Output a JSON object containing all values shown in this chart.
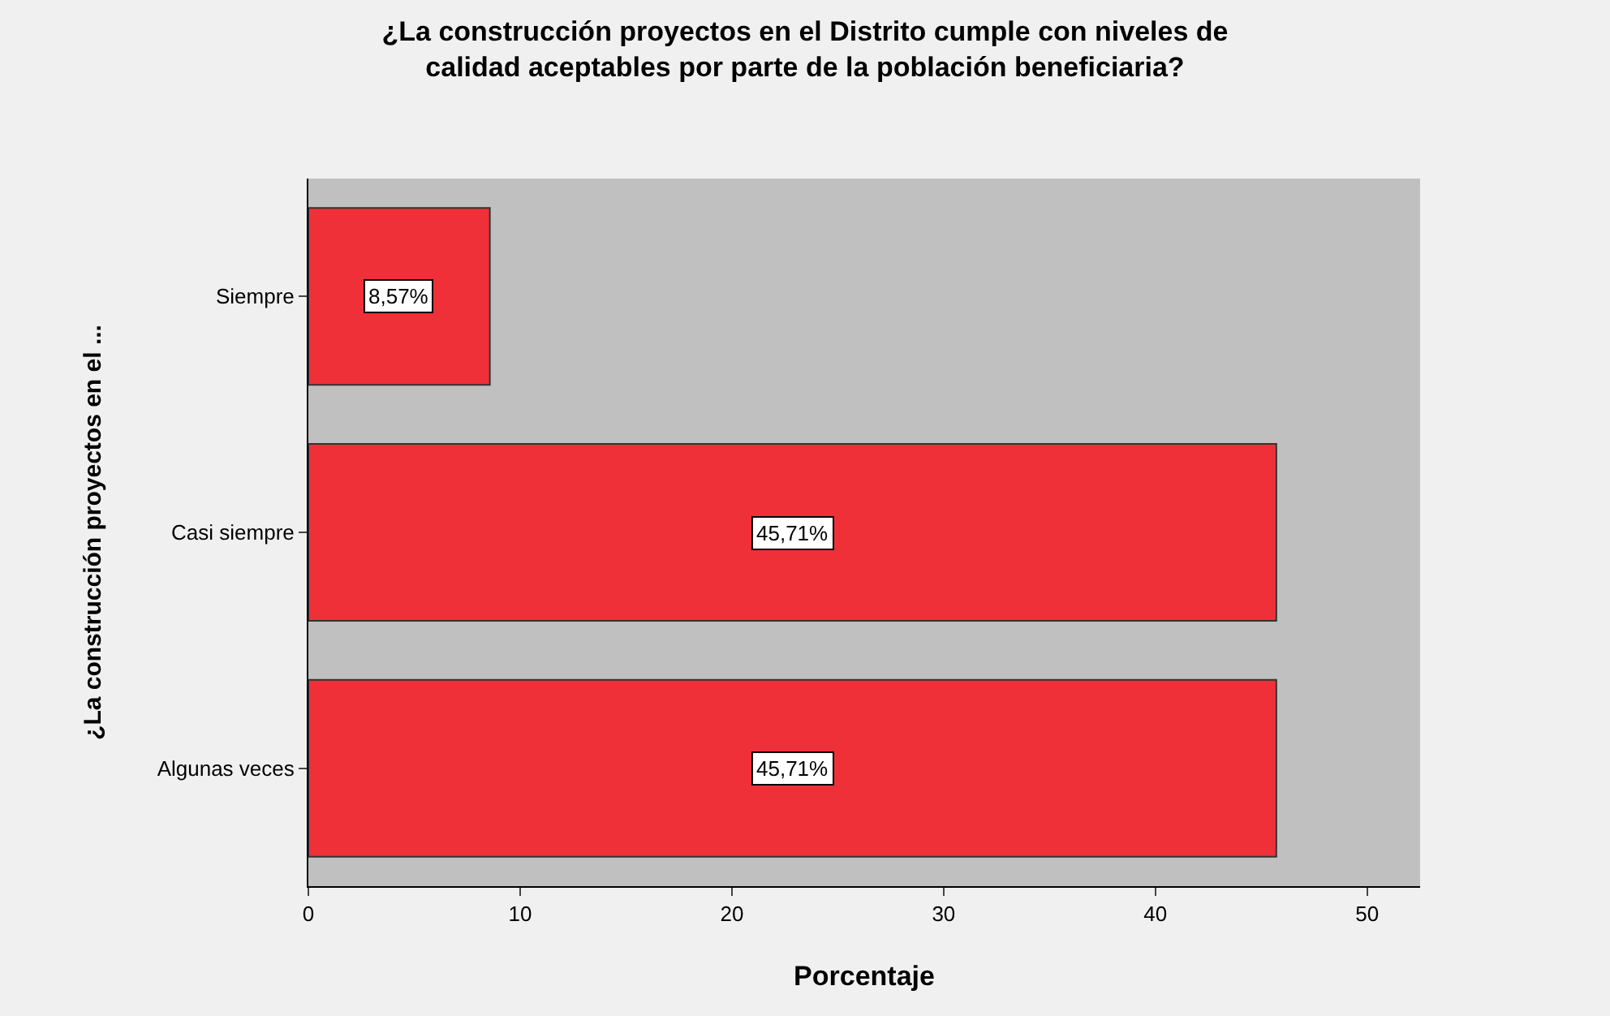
{
  "chart_data": {
    "type": "bar",
    "orientation": "horizontal",
    "title": "¿La construcción proyectos en el Distrito cumple con niveles de calidad aceptables por parte de la población beneficiaria?",
    "xlabel": "Porcentaje",
    "ylabel": "¿La construcción proyectos en el ...",
    "categories": [
      "Siempre",
      "Casi siempre",
      "Algunas veces"
    ],
    "values": [
      8.57,
      45.71,
      45.71
    ],
    "value_labels": [
      "8,57%",
      "45,71%",
      "45,71%"
    ],
    "color": "#ef3038",
    "xlim": [
      0,
      52.5
    ],
    "xticks": [
      0,
      10,
      20,
      30,
      40,
      50
    ],
    "grid": false
  }
}
